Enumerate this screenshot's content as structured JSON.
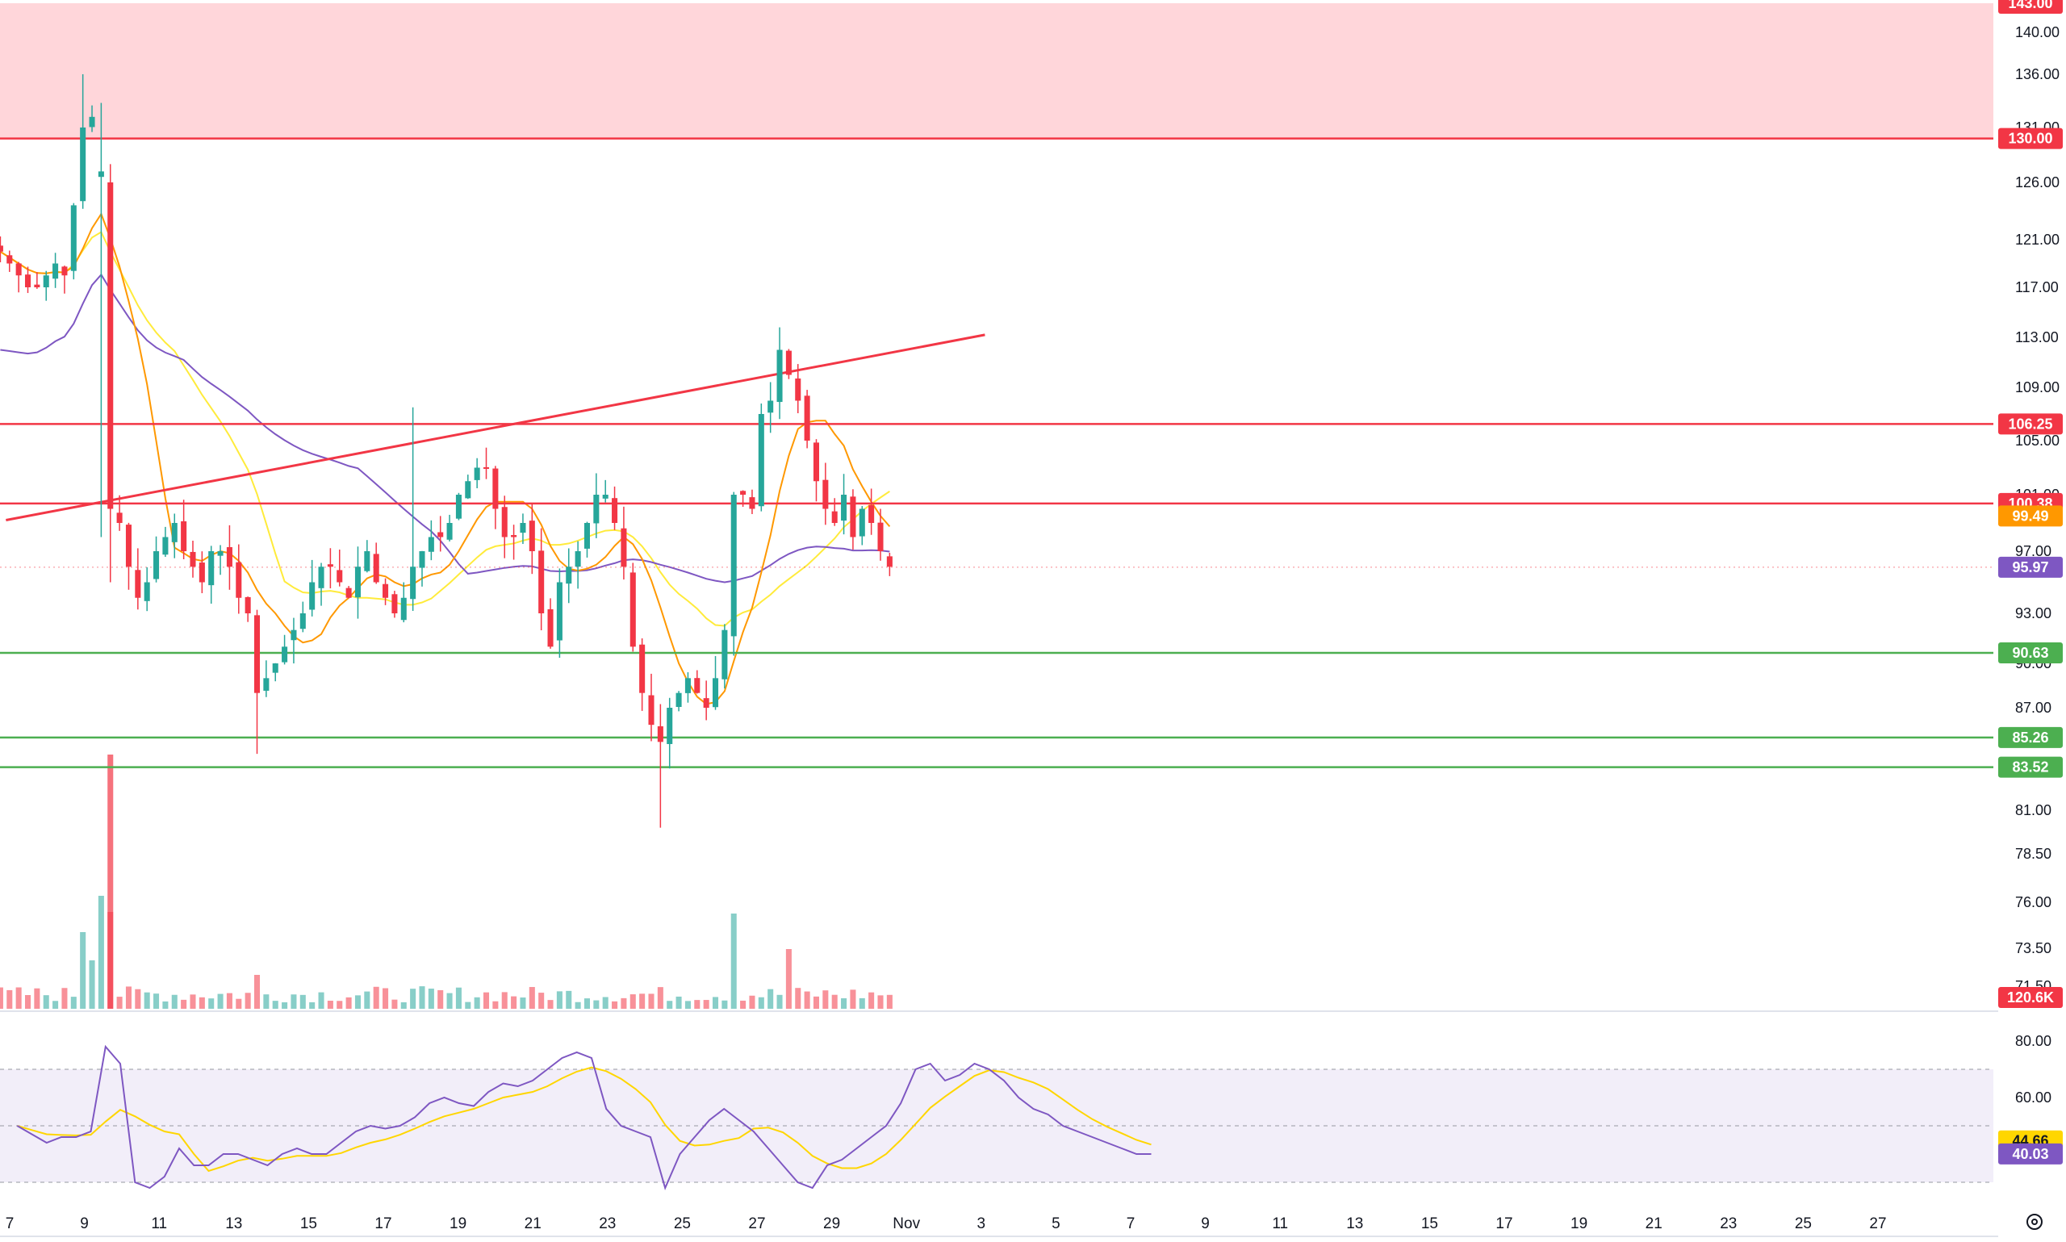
{
  "chart_data": {
    "type": "candlestick",
    "price_axis_ticks": [
      "143.00",
      "140.00",
      "136.00",
      "131.00",
      "126.00",
      "121.00",
      "117.00",
      "113.00",
      "109.00",
      "105.00",
      "101.00",
      "97.00",
      "93.00",
      "90.00",
      "87.00",
      "81.00",
      "78.50",
      "76.00",
      "73.50",
      "71.50"
    ],
    "rsi_axis_ticks": [
      "80.00",
      "60.00"
    ],
    "x_tick_labels": [
      "7",
      "9",
      "11",
      "13",
      "15",
      "17",
      "19",
      "21",
      "23",
      "25",
      "27",
      "29",
      "Nov",
      "3",
      "5",
      "7",
      "9",
      "11",
      "13",
      "15",
      "17",
      "19",
      "21",
      "23",
      "25",
      "27"
    ],
    "price_range": [
      70,
      143
    ],
    "rsi_range": [
      25,
      90
    ],
    "resistance_zone": {
      "from": 130.0,
      "to": 143.0
    },
    "horizontal_levels": [
      {
        "value": 130.0,
        "label": "130.00",
        "color": "#f23645"
      },
      {
        "value": 106.25,
        "label": "106.25",
        "color": "#f23645"
      },
      {
        "value": 100.38,
        "label": "100.38",
        "color": "#f23645"
      },
      {
        "value": 90.63,
        "label": "90.63",
        "color": "#4caf50"
      },
      {
        "value": 85.26,
        "label": "85.26",
        "color": "#4caf50"
      },
      {
        "value": 83.52,
        "label": "83.52",
        "color": "#4caf50"
      }
    ],
    "trendline": {
      "from": {
        "day": 6.9,
        "price": 99.2
      },
      "to": {
        "day": 33.1,
        "price": 113.2
      }
    },
    "price_tags": [
      {
        "label": "143.00",
        "value": 143.0,
        "color": "#f23645"
      },
      {
        "label": "130.00",
        "value": 130.0,
        "color": "#f23645"
      },
      {
        "label": "106.25",
        "value": 106.25,
        "color": "#f23645"
      },
      {
        "label": "100.38",
        "value": 100.38,
        "color": "#f23645"
      },
      {
        "label": "99.49",
        "value": 99.49,
        "color": "#ff9800"
      },
      {
        "label": "95.97",
        "value": 95.97,
        "color": "#7e57c2"
      },
      {
        "label": "90.63",
        "value": 90.63,
        "color": "#4caf50"
      },
      {
        "label": "85.26",
        "value": 85.26,
        "color": "#4caf50"
      },
      {
        "label": "83.52",
        "value": 83.52,
        "color": "#4caf50"
      }
    ],
    "volume_tag": {
      "label": "120.6K",
      "color": "#f23645"
    },
    "rsi_tags": [
      {
        "label": "44.66",
        "value": 44.66,
        "color": "#ffd600"
      },
      {
        "label": "40.03",
        "value": 40.03,
        "color": "#7e57c2"
      }
    ],
    "rsi_band": [
      30,
      70
    ],
    "rsi_mid": 50,
    "colors": {
      "up": "#26a69a",
      "down": "#f23645",
      "ma_fast": "#ff9800",
      "ma_mid": "#ffeb3b",
      "ma_slow": "#7e57c2",
      "rsi": "#7e57c2",
      "rsi_ma": "#ffd600"
    },
    "candles_anchor_close": [
      120,
      119,
      118,
      117,
      117,
      118,
      119,
      118,
      124,
      131,
      132,
      127,
      100,
      99,
      96,
      94,
      95,
      97,
      98,
      99,
      97,
      96,
      95,
      97,
      97,
      96,
      94,
      93,
      88,
      89,
      90,
      91,
      92,
      93,
      95,
      96,
      96,
      95,
      94,
      96,
      97,
      95,
      94,
      93,
      94,
      96,
      97,
      98,
      98,
      99,
      101,
      102,
      103,
      103,
      100,
      98,
      98,
      99,
      97,
      93,
      91,
      95,
      96,
      97,
      99,
      101,
      101,
      99,
      96,
      91,
      88,
      86,
      85,
      87,
      88,
      89,
      88,
      87,
      89,
      92,
      101,
      101,
      100,
      107,
      108,
      112,
      110,
      108,
      105,
      102,
      100,
      99,
      101,
      98,
      100,
      99,
      97,
      96
    ],
    "rsi_anchor": [
      50,
      47,
      44,
      46,
      46,
      48,
      78,
      72,
      30,
      28,
      32,
      42,
      36,
      36,
      40,
      40,
      38,
      36,
      40,
      42,
      40,
      40,
      44,
      48,
      50,
      49,
      50,
      53,
      58,
      60,
      58,
      57,
      62,
      65,
      64,
      66,
      70,
      74,
      76,
      74,
      56,
      50,
      48,
      46,
      28,
      40,
      46,
      52,
      56,
      52,
      48,
      42,
      36,
      30,
      28,
      36,
      38,
      42,
      46,
      50,
      58,
      70,
      72,
      66,
      68,
      72,
      70,
      66,
      60,
      56,
      54,
      50,
      48,
      46,
      44,
      42,
      40,
      40
    ]
  }
}
